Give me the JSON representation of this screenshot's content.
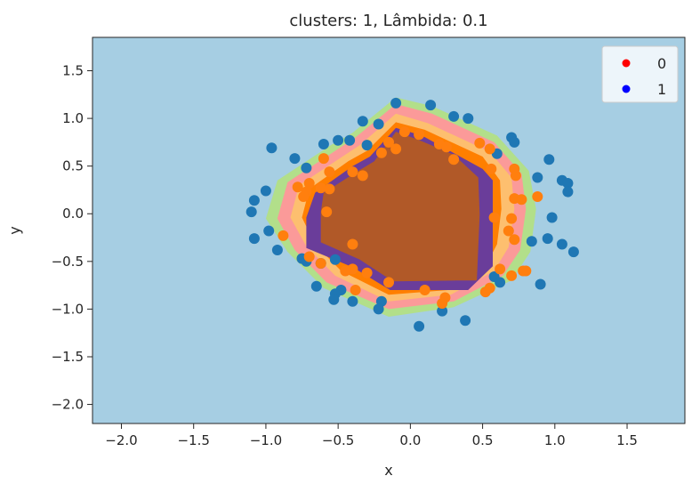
{
  "chart_data": {
    "type": "scatter",
    "title": "clusters: 1, Lâmbida: 0.1",
    "xlabel": "x",
    "ylabel": "y",
    "xlim": [
      -2.2,
      1.9
    ],
    "ylim": [
      -2.2,
      1.85
    ],
    "xticks": [
      -2.0,
      -1.5,
      -1.0,
      -0.5,
      0.0,
      0.5,
      1.0,
      1.5
    ],
    "xtick_labels": [
      "−2.0",
      "−1.5",
      "−1.0",
      "−0.5",
      "0.0",
      "0.5",
      "1.0",
      "1.5"
    ],
    "yticks": [
      1.5,
      1.0,
      0.5,
      0.0,
      -0.5,
      -1.0,
      -1.5,
      -2.0
    ],
    "ytick_labels": [
      "1.5",
      "1.0",
      "0.5",
      "0.0",
      "−0.5",
      "−1.0",
      "−1.5",
      "−2.0"
    ],
    "grid": false,
    "legend": {
      "placement": "top-right",
      "entries": [
        {
          "label": "0",
          "color": "#ff0000"
        },
        {
          "label": "1",
          "color": "#0000ff"
        }
      ]
    },
    "background_color": "#a6cee3",
    "decision_regions": [
      {
        "color": "#b2df8a",
        "polygon": [
          [
            -0.1,
            1.22
          ],
          [
            0.15,
            1.13
          ],
          [
            0.6,
            0.82
          ],
          [
            0.82,
            0.45
          ],
          [
            0.87,
            0.05
          ],
          [
            0.83,
            -0.4
          ],
          [
            0.7,
            -0.7
          ],
          [
            0.3,
            -0.98
          ],
          [
            -0.15,
            -1.08
          ],
          [
            -0.6,
            -0.78
          ],
          [
            -0.85,
            -0.4
          ],
          [
            -1.0,
            -0.05
          ],
          [
            -0.92,
            0.35
          ],
          [
            -0.55,
            0.72
          ],
          [
            -0.4,
            0.85
          ]
        ]
      },
      {
        "color": "#fb9a99",
        "polygon": [
          [
            -0.1,
            1.15
          ],
          [
            0.15,
            1.05
          ],
          [
            0.58,
            0.75
          ],
          [
            0.77,
            0.42
          ],
          [
            0.8,
            0.05
          ],
          [
            0.76,
            -0.38
          ],
          [
            0.64,
            -0.65
          ],
          [
            0.3,
            -0.92
          ],
          [
            -0.15,
            -1.0
          ],
          [
            -0.58,
            -0.72
          ],
          [
            -0.8,
            -0.38
          ],
          [
            -0.92,
            -0.05
          ],
          [
            -0.85,
            0.33
          ],
          [
            -0.52,
            0.66
          ],
          [
            -0.38,
            0.8
          ]
        ]
      },
      {
        "color": "#fdbf6f",
        "polygon": [
          [
            -0.1,
            1.05
          ],
          [
            0.12,
            0.95
          ],
          [
            0.55,
            0.65
          ],
          [
            0.7,
            0.38
          ],
          [
            0.72,
            0.05
          ],
          [
            0.68,
            -0.35
          ],
          [
            0.58,
            -0.6
          ],
          [
            0.28,
            -0.85
          ],
          [
            -0.15,
            -0.92
          ],
          [
            -0.52,
            -0.65
          ],
          [
            -0.72,
            -0.34
          ],
          [
            -0.83,
            -0.04
          ],
          [
            -0.77,
            0.3
          ],
          [
            -0.47,
            0.6
          ],
          [
            -0.35,
            0.72
          ]
        ]
      },
      {
        "color": "#ff7f00",
        "polygon": [
          [
            -0.1,
            0.96
          ],
          [
            0.1,
            0.88
          ],
          [
            0.5,
            0.6
          ],
          [
            0.62,
            0.35
          ],
          [
            0.63,
            0.05
          ],
          [
            0.6,
            -0.32
          ],
          [
            0.52,
            -0.55
          ],
          [
            0.26,
            -0.8
          ],
          [
            -0.15,
            -0.85
          ],
          [
            -0.48,
            -0.6
          ],
          [
            -0.66,
            -0.32
          ],
          [
            -0.75,
            -0.04
          ],
          [
            -0.7,
            0.26
          ],
          [
            -0.43,
            0.55
          ],
          [
            -0.3,
            0.66
          ]
        ]
      },
      {
        "color": "#6a3d9a",
        "polygon": [
          [
            -0.1,
            0.9
          ],
          [
            0.08,
            0.82
          ],
          [
            0.5,
            0.47
          ],
          [
            0.57,
            0.35
          ],
          [
            0.57,
            -0.55
          ],
          [
            0.4,
            -0.8
          ],
          [
            -0.14,
            -0.8
          ],
          [
            -0.4,
            -0.56
          ],
          [
            -0.72,
            -0.36
          ],
          [
            -0.72,
            -0.04
          ],
          [
            -0.66,
            0.22
          ],
          [
            -0.4,
            0.5
          ],
          [
            -0.28,
            0.6
          ]
        ]
      },
      {
        "color": "#b15928",
        "polygon": [
          [
            -0.1,
            0.86
          ],
          [
            0.05,
            0.78
          ],
          [
            0.3,
            0.62
          ],
          [
            0.47,
            0.38
          ],
          [
            0.48,
            -0.01
          ],
          [
            0.46,
            -0.7
          ],
          [
            0.32,
            -0.7
          ],
          [
            -0.12,
            -0.71
          ],
          [
            -0.35,
            -0.48
          ],
          [
            -0.62,
            -0.3
          ],
          [
            -0.62,
            0.02
          ],
          [
            -0.6,
            0.22
          ],
          [
            -0.36,
            0.45
          ],
          [
            -0.25,
            0.55
          ]
        ]
      }
    ],
    "series": [
      {
        "color": "#1f77b4",
        "points": [
          [
            -0.1,
            1.16
          ],
          [
            0.14,
            1.14
          ],
          [
            0.3,
            1.02
          ],
          [
            0.4,
            1.0
          ],
          [
            -0.33,
            0.97
          ],
          [
            -0.22,
            0.94
          ],
          [
            -0.96,
            0.69
          ],
          [
            -0.6,
            0.73
          ],
          [
            -0.5,
            0.77
          ],
          [
            -0.42,
            0.77
          ],
          [
            -0.3,
            0.72
          ],
          [
            -0.8,
            0.58
          ],
          [
            -0.72,
            0.48
          ],
          [
            0.7,
            0.8
          ],
          [
            0.72,
            0.75
          ],
          [
            0.6,
            0.63
          ],
          [
            0.96,
            0.57
          ],
          [
            -1.0,
            0.24
          ],
          [
            -1.08,
            0.14
          ],
          [
            -1.1,
            0.02
          ],
          [
            0.88,
            0.38
          ],
          [
            1.05,
            0.35
          ],
          [
            1.09,
            0.32
          ],
          [
            1.09,
            0.23
          ],
          [
            0.98,
            -0.04
          ],
          [
            -0.98,
            -0.18
          ],
          [
            -1.08,
            -0.26
          ],
          [
            0.95,
            -0.26
          ],
          [
            0.84,
            -0.29
          ],
          [
            1.05,
            -0.32
          ],
          [
            1.13,
            -0.4
          ],
          [
            -0.92,
            -0.38
          ],
          [
            -0.75,
            -0.47
          ],
          [
            -0.72,
            -0.5
          ],
          [
            -0.62,
            -0.52
          ],
          [
            -0.52,
            -0.48
          ],
          [
            0.58,
            -0.66
          ],
          [
            0.62,
            -0.72
          ],
          [
            0.9,
            -0.74
          ],
          [
            -0.48,
            -0.8
          ],
          [
            -0.52,
            -0.84
          ],
          [
            -0.65,
            -0.76
          ],
          [
            -0.4,
            -0.92
          ],
          [
            -0.2,
            -0.92
          ],
          [
            -0.22,
            -1.0
          ],
          [
            0.22,
            -1.02
          ],
          [
            0.38,
            -1.12
          ],
          [
            0.06,
            -1.18
          ],
          [
            -0.53,
            -0.9
          ]
        ]
      },
      {
        "color": "#ff7f0e",
        "points": [
          [
            -0.04,
            0.86
          ],
          [
            0.06,
            0.83
          ],
          [
            -0.15,
            0.75
          ],
          [
            -0.2,
            0.64
          ],
          [
            -0.1,
            0.68
          ],
          [
            0.2,
            0.73
          ],
          [
            0.25,
            0.7
          ],
          [
            0.3,
            0.57
          ],
          [
            0.48,
            0.74
          ],
          [
            0.55,
            0.68
          ],
          [
            0.56,
            0.47
          ],
          [
            0.72,
            0.47
          ],
          [
            0.73,
            0.4
          ],
          [
            -0.6,
            0.58
          ],
          [
            -0.56,
            0.44
          ],
          [
            -0.4,
            0.44
          ],
          [
            -0.33,
            0.4
          ],
          [
            -0.7,
            0.32
          ],
          [
            -0.78,
            0.28
          ],
          [
            -0.62,
            0.27
          ],
          [
            -0.72,
            0.23
          ],
          [
            -0.74,
            0.18
          ],
          [
            -0.56,
            0.26
          ],
          [
            -0.58,
            0.02
          ],
          [
            0.72,
            0.16
          ],
          [
            0.77,
            0.15
          ],
          [
            0.88,
            0.18
          ],
          [
            0.58,
            -0.04
          ],
          [
            0.7,
            -0.05
          ],
          [
            0.68,
            -0.18
          ],
          [
            0.72,
            -0.27
          ],
          [
            -0.88,
            -0.23
          ],
          [
            -0.7,
            -0.45
          ],
          [
            -0.62,
            -0.52
          ],
          [
            -0.4,
            -0.58
          ],
          [
            -0.4,
            -0.32
          ],
          [
            0.62,
            -0.58
          ],
          [
            0.7,
            -0.65
          ],
          [
            0.78,
            -0.6
          ],
          [
            0.8,
            -0.6
          ],
          [
            -0.45,
            -0.6
          ],
          [
            -0.3,
            -0.62
          ],
          [
            -0.38,
            -0.8
          ],
          [
            -0.15,
            -0.72
          ],
          [
            0.1,
            -0.8
          ],
          [
            0.24,
            -0.88
          ],
          [
            0.22,
            -0.94
          ],
          [
            0.52,
            -0.82
          ],
          [
            0.55,
            -0.78
          ]
        ]
      }
    ]
  }
}
